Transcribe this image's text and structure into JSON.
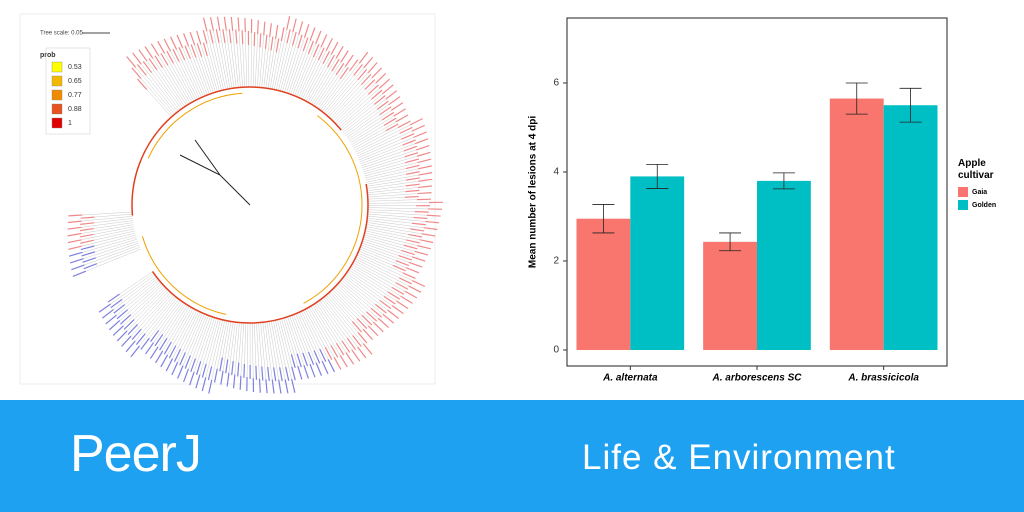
{
  "tree": {
    "scale_label": "Tree scale: 0.05",
    "legend_title": "prob",
    "legend": [
      {
        "label": "0.53",
        "color": "#ffff00"
      },
      {
        "label": "0.65",
        "color": "#f5b800"
      },
      {
        "label": "0.77",
        "color": "#f08a00"
      },
      {
        "label": "0.88",
        "color": "#e8521e"
      },
      {
        "label": "1",
        "color": "#e00000"
      }
    ]
  },
  "chart_data": {
    "type": "bar",
    "y_label": "Mean number of lesions at 4 dpi",
    "legend_title": "Apple cultivar",
    "categories": [
      "A. alternata",
      "A. arborescens SC",
      "A. brassicicola"
    ],
    "series": [
      {
        "name": "Gaia",
        "color": "#f8766d",
        "values": [
          2.95,
          2.43,
          5.65
        ],
        "errors": [
          0.32,
          0.2,
          0.35
        ]
      },
      {
        "name": "Golden",
        "color": "#00bfc4",
        "values": [
          3.9,
          3.8,
          5.5
        ],
        "errors": [
          0.27,
          0.18,
          0.38
        ]
      }
    ],
    "ylim": [
      -0.36,
      7.46
    ],
    "yticks": [
      0,
      2,
      4,
      6
    ],
    "grid": false
  },
  "banner": {
    "brand": "PeerJ",
    "section": "Life & Environment"
  }
}
